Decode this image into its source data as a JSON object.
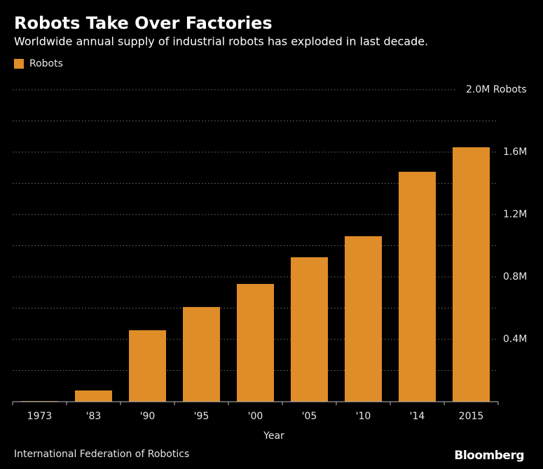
{
  "chart_data": {
    "type": "bar",
    "title": "Robots Take Over Factories",
    "subtitle": "Worldwide annual supply of industrial robots has exploded in last decade.",
    "x_label": "Year",
    "source": "International Federation of Robotics",
    "brand": "Bloomberg",
    "categories": [
      "1973",
      "'83",
      "'90",
      "'95",
      "'00",
      "'05",
      "'10",
      "'14",
      "2015"
    ],
    "series": [
      {
        "name": "Robots",
        "color": "#de8d28",
        "values": [
          0.004,
          0.072,
          0.458,
          0.607,
          0.755,
          0.926,
          1.061,
          1.474,
          1.631
        ]
      }
    ],
    "ylim": [
      0,
      2.0
    ],
    "yticks": [
      {
        "value": 0.4,
        "label": "0.4M"
      },
      {
        "value": 0.8,
        "label": "0.8M"
      },
      {
        "value": 1.2,
        "label": "1.2M"
      },
      {
        "value": 1.6,
        "label": "1.6M"
      },
      {
        "value": 2.0,
        "label": "2.0M Robots"
      }
    ],
    "y_minor_ticks": [
      0.2,
      0.6,
      1.0,
      1.4,
      1.8
    ],
    "grid": true,
    "legend": "top-left"
  }
}
